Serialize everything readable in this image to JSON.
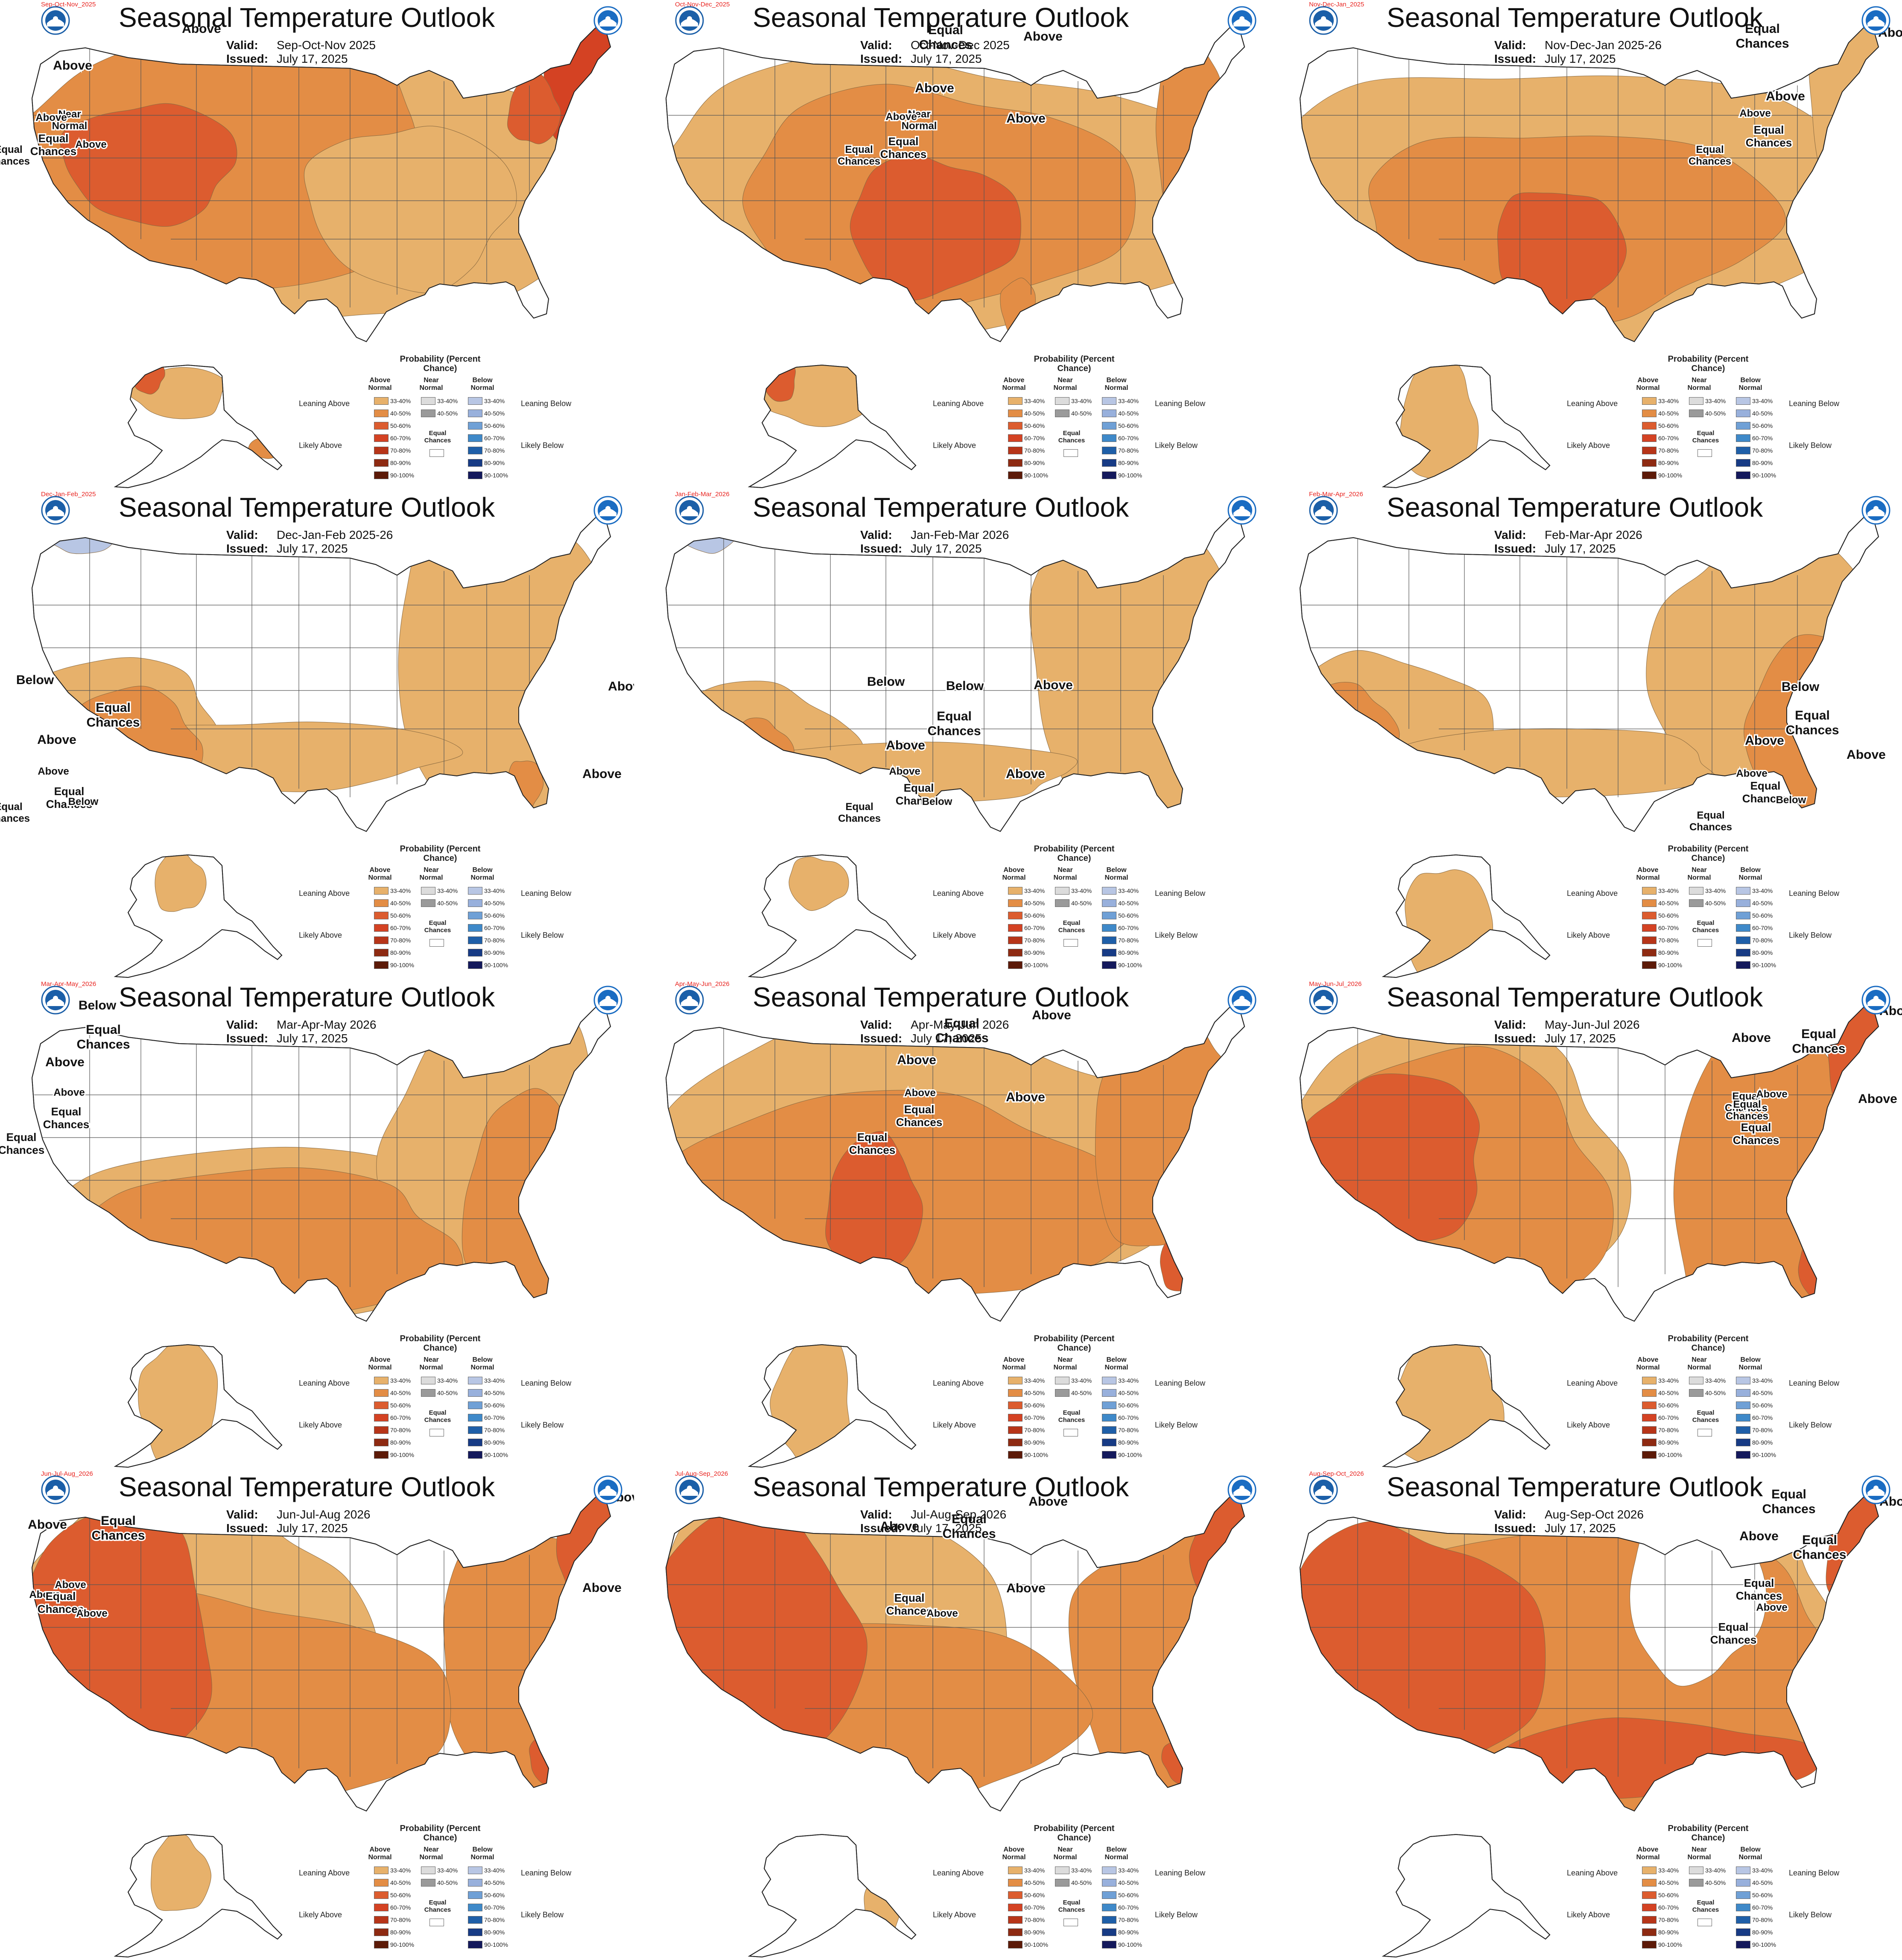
{
  "header": {
    "title": "Seasonal Temperature Outlook",
    "issued": "July 17, 2025"
  },
  "labels": {
    "valid": "Valid:",
    "issued": "Issued:"
  },
  "colors": {
    "equal": "#ffffff",
    "above_33_40": "#e7b16b",
    "above_40_50": "#e38d45",
    "above_50_60": "#dc5c2f",
    "above_60_70": "#d44223",
    "below_33_40": "#b8c6e4",
    "state_line": "#555555"
  },
  "legend": {
    "heading": "Probability (Percent Chance)",
    "col_above": "Above Normal",
    "col_near": "Near Normal",
    "col_below": "Below Normal",
    "leaning_above": "Leaning Above",
    "likely_above": "Likely Above",
    "leaning_below": "Leaning Below",
    "likely_below": "Likely Below",
    "equal_chances": "Equal Chances",
    "ranges": [
      "33-40%",
      "40-50%",
      "50-60%",
      "60-70%",
      "70-80%",
      "80-90%",
      "90-100%"
    ],
    "near_ranges": [
      "33-40%",
      "40-50%"
    ],
    "above_colors": [
      "#e7b16b",
      "#e38d45",
      "#dc5c2f",
      "#d44223",
      "#b73519",
      "#8e2a12",
      "#5c1a08"
    ],
    "near_colors": [
      "#dcdcdc",
      "#9a9a9a"
    ],
    "below_colors": [
      "#b8c6e4",
      "#98b0dc",
      "#6fa0d6",
      "#3e89c9",
      "#1f5fa8",
      "#173b85",
      "#14195c"
    ]
  },
  "panels": [
    {
      "id": "p1",
      "tag": "Sep-Oct-Nov_2025",
      "valid": "Sep-Oct-Nov 2025",
      "labels": [
        {
          "text": "Above",
          "region": "nw-core"
        },
        {
          "text": "Above",
          "region": "ne"
        },
        {
          "text": "Near Normal",
          "region": "ak-n"
        },
        {
          "text": "Above",
          "region": "ak-w"
        },
        {
          "text": "Equal Chances",
          "region": "ak-c"
        },
        {
          "text": "Above",
          "region": "ak-se"
        },
        {
          "text": "Equal Chances",
          "region": "ak-far"
        }
      ]
    },
    {
      "id": "p2",
      "tag": "Oct-Nov-Dec_2025",
      "valid": "Oct-Nov-Dec 2025",
      "labels": [
        {
          "text": "Equal Chances",
          "region": "n"
        },
        {
          "text": "Above",
          "region": "sw-core"
        },
        {
          "text": "Above",
          "region": "ne"
        },
        {
          "text": "Above",
          "region": "fl"
        },
        {
          "text": "Near Normal",
          "region": "ak-n"
        },
        {
          "text": "Above",
          "region": "ak-w"
        },
        {
          "text": "Equal Chances",
          "region": "ak-c"
        },
        {
          "text": "Equal Chances",
          "region": "ak-far"
        }
      ]
    },
    {
      "id": "p3",
      "tag": "Nov-Dec-Jan_2025",
      "valid": "Nov-Dec-Jan 2025-26",
      "labels": [
        {
          "text": "Equal Chances",
          "region": "nw"
        },
        {
          "text": "Above",
          "region": "tx-core"
        },
        {
          "text": "Above",
          "region": "ne"
        },
        {
          "text": "Above",
          "region": "ak-n"
        },
        {
          "text": "Equal Chances",
          "region": "ak-c"
        },
        {
          "text": "Equal Chances",
          "region": "ak-far"
        }
      ]
    },
    {
      "id": "p4",
      "tag": "Dec-Jan-Feb_2025",
      "valid": "Dec-Jan-Feb 2025-26",
      "labels": [
        {
          "text": "Below",
          "region": "pnw"
        },
        {
          "text": "Equal Chances",
          "region": "c"
        },
        {
          "text": "Above",
          "region": "sw"
        },
        {
          "text": "Above",
          "region": "ne"
        },
        {
          "text": "Above",
          "region": "fl"
        },
        {
          "text": "Above",
          "region": "ak-n"
        },
        {
          "text": "Equal Chances",
          "region": "ak-c"
        },
        {
          "text": "Below",
          "region": "ak-se"
        },
        {
          "text": "Equal Chances",
          "region": "ak-far"
        }
      ]
    },
    {
      "id": "p5",
      "tag": "Jan-Feb-Mar_2026",
      "valid": "Jan-Feb-Mar 2026",
      "labels": [
        {
          "text": "Below",
          "region": "pnw"
        },
        {
          "text": "Below",
          "region": "n"
        },
        {
          "text": "Equal Chances",
          "region": "c"
        },
        {
          "text": "Above",
          "region": "sw"
        },
        {
          "text": "Above",
          "region": "ne"
        },
        {
          "text": "Above",
          "region": "fl"
        },
        {
          "text": "Above",
          "region": "ak-n"
        },
        {
          "text": "Equal Chances",
          "region": "ak-c"
        },
        {
          "text": "Below",
          "region": "ak-se"
        },
        {
          "text": "Equal Chances",
          "region": "ak-far"
        }
      ]
    },
    {
      "id": "p6",
      "tag": "Feb-Mar-Apr_2026",
      "valid": "Feb-Mar-Apr 2026",
      "labels": [
        {
          "text": "Below",
          "region": "n"
        },
        {
          "text": "Equal Chances",
          "region": "c"
        },
        {
          "text": "Above",
          "region": "sw"
        },
        {
          "text": "Above",
          "region": "se"
        },
        {
          "text": "Above",
          "region": "ak-n"
        },
        {
          "text": "Equal Chances",
          "region": "ak-c"
        },
        {
          "text": "Below",
          "region": "ak-se"
        },
        {
          "text": "Equal Chances",
          "region": "ak-far"
        }
      ]
    },
    {
      "id": "p7",
      "tag": "Mar-Apr-May_2026",
      "valid": "Mar-Apr-May 2026",
      "labels": [
        {
          "text": "Below",
          "region": "n"
        },
        {
          "text": "Equal Chances",
          "region": "c"
        },
        {
          "text": "Above",
          "region": "sw"
        },
        {
          "text": "Above",
          "region": "ak-n"
        },
        {
          "text": "Equal Chances",
          "region": "ak-c"
        },
        {
          "text": "Equal Chances",
          "region": "ak-far"
        }
      ]
    },
    {
      "id": "p8",
      "tag": "Apr-May-Jun_2026",
      "valid": "Apr-May-Jun 2026",
      "labels": [
        {
          "text": "Equal Chances",
          "region": "c"
        },
        {
          "text": "Above",
          "region": "sw-core"
        },
        {
          "text": "Above",
          "region": "ne"
        },
        {
          "text": "Above",
          "region": "fl"
        },
        {
          "text": "Above",
          "region": "ak-n"
        },
        {
          "text": "Equal Chances",
          "region": "ak-c"
        },
        {
          "text": "Equal Chances",
          "region": "ak-far"
        }
      ]
    },
    {
      "id": "p9",
      "tag": "May-Jun-Jul_2026",
      "valid": "May-Jun-Jul 2026",
      "labels": [
        {
          "text": "Above",
          "region": "w-core"
        },
        {
          "text": "Equal Chances",
          "region": "c"
        },
        {
          "text": "Above",
          "region": "ne"
        },
        {
          "text": "Above",
          "region": "fl"
        },
        {
          "text": "Equal Chances",
          "region": "ak-n"
        },
        {
          "text": "Above",
          "region": "ak-ne"
        },
        {
          "text": "Equal Chances",
          "region": "ak-w"
        },
        {
          "text": "Equal Chances",
          "region": "ak-c"
        }
      ]
    },
    {
      "id": "p10",
      "tag": "Jun-Jul-Aug_2026",
      "valid": "Jun-Jul-Aug 2026",
      "labels": [
        {
          "text": "Above",
          "region": "w-core"
        },
        {
          "text": "Equal Chances",
          "region": "c"
        },
        {
          "text": "Above",
          "region": "ne"
        },
        {
          "text": "Above",
          "region": "fl"
        },
        {
          "text": "Above",
          "region": "ak-ne"
        },
        {
          "text": "Above",
          "region": "ak-w"
        },
        {
          "text": "Equal Chances",
          "region": "ak-c"
        },
        {
          "text": "Above",
          "region": "ak-se"
        }
      ]
    },
    {
      "id": "p11",
      "tag": "Jul-Aug-Sep_2026",
      "valid": "Jul-Aug-Sep 2026",
      "labels": [
        {
          "text": "Above",
          "region": "w-core"
        },
        {
          "text": "Equal Chances",
          "region": "c"
        },
        {
          "text": "Above",
          "region": "ne"
        },
        {
          "text": "Above",
          "region": "fl"
        },
        {
          "text": "Equal Chances",
          "region": "ak-c"
        },
        {
          "text": "Above",
          "region": "ak-se"
        }
      ]
    },
    {
      "id": "p12",
      "tag": "Aug-Sep-Oct_2026",
      "valid": "Aug-Sep-Oct 2026",
      "labels": [
        {
          "text": "Equal Chances",
          "region": "n"
        },
        {
          "text": "Above",
          "region": "w-core"
        },
        {
          "text": "Equal Chances",
          "region": "c"
        },
        {
          "text": "Above",
          "region": "ne"
        },
        {
          "text": "Equal Chances",
          "region": "ak-n"
        },
        {
          "text": "Above",
          "region": "ak-se"
        },
        {
          "text": "Equal Chances",
          "region": "ak-far"
        }
      ]
    }
  ]
}
